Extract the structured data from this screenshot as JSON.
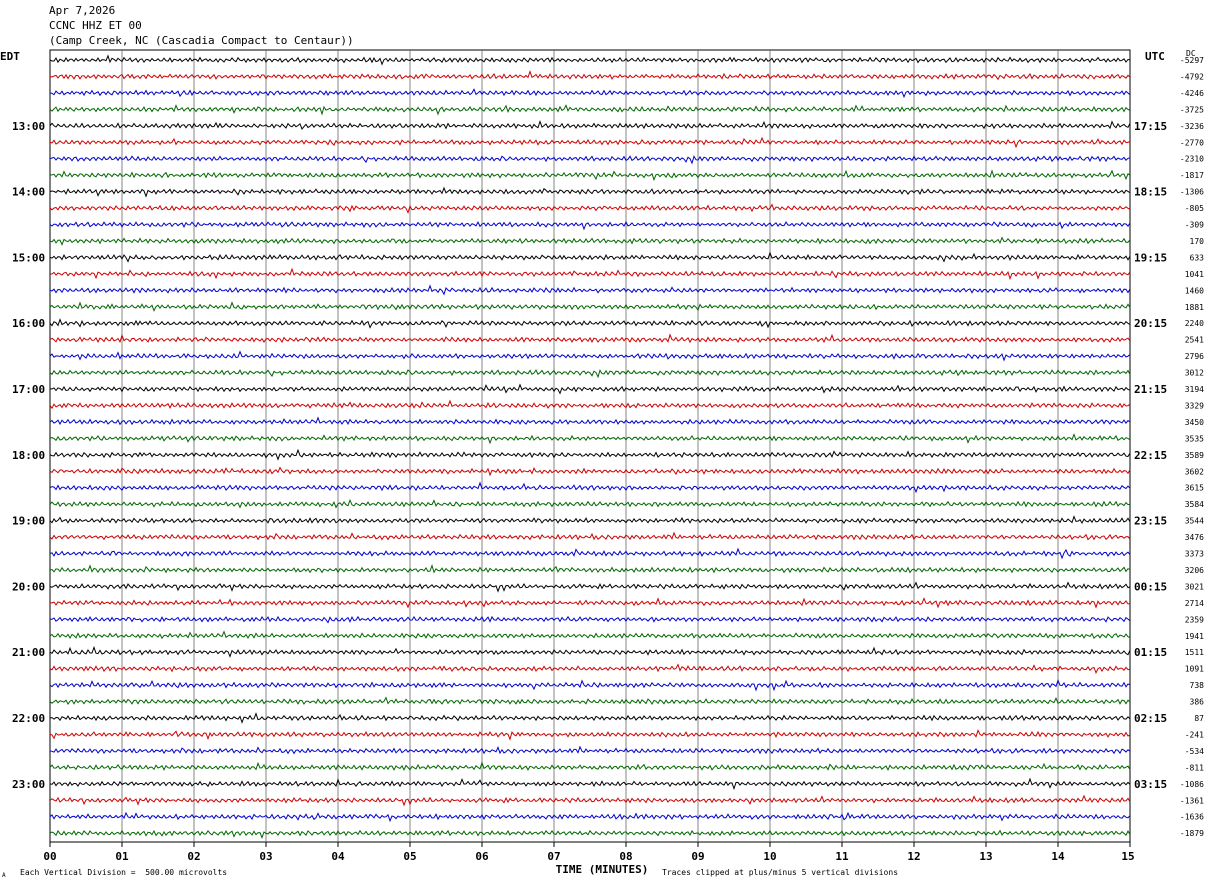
{
  "header": {
    "date": "Apr 7,2026",
    "station": "CCNC HHZ ET 00",
    "location": "(Camp Creek, NC (Cascadia Compact to Centaur))"
  },
  "left_zone_label": "EDT",
  "right_zone_label": "UTC",
  "dc_label": "DC",
  "footer": {
    "scale_note": "Each Vertical Division =  500.00 microvolts",
    "clip_note": "Traces clipped at plus/minus 5 vertical divisions",
    "corner_mark": "A"
  },
  "colors": {
    "trace_cycle": [
      "#000000",
      "#cc0000",
      "#0000cc",
      "#006600"
    ],
    "grid": "#666666"
  },
  "chart_data": {
    "type": "line",
    "title": "CCNC HHZ ET 00",
    "xlabel": "TIME (MINUTES)",
    "x_ticks": [
      "00",
      "01",
      "02",
      "03",
      "04",
      "05",
      "06",
      "07",
      "08",
      "09",
      "10",
      "11",
      "12",
      "13",
      "14",
      "15"
    ],
    "xlim": [
      0,
      15
    ],
    "rows_per_hour": 4,
    "left_hour_labels": [
      "13:00",
      "14:00",
      "15:00",
      "16:00",
      "17:00",
      "18:00",
      "19:00",
      "20:00",
      "21:00",
      "22:00",
      "23:00"
    ],
    "right_hour_labels": [
      "17:15",
      "18:15",
      "19:15",
      "20:15",
      "21:15",
      "22:15",
      "23:15",
      "00:15",
      "01:15",
      "02:15",
      "03:15"
    ],
    "dc_offsets": [
      -5297,
      -4792,
      -4246,
      -3725,
      -3236,
      -2770,
      -2310,
      -1817,
      -1306,
      -805,
      -309,
      170,
      633,
      1041,
      1460,
      1881,
      2240,
      2541,
      2796,
      3012,
      3194,
      3329,
      3450,
      3535,
      3589,
      3602,
      3615,
      3584,
      3544,
      3476,
      3373,
      3206,
      3021,
      2714,
      2359,
      1941,
      1511,
      1091,
      738,
      386,
      87,
      -241,
      -534,
      -811,
      -1086,
      -1361,
      -1636,
      -1879
    ],
    "grid": true
  }
}
